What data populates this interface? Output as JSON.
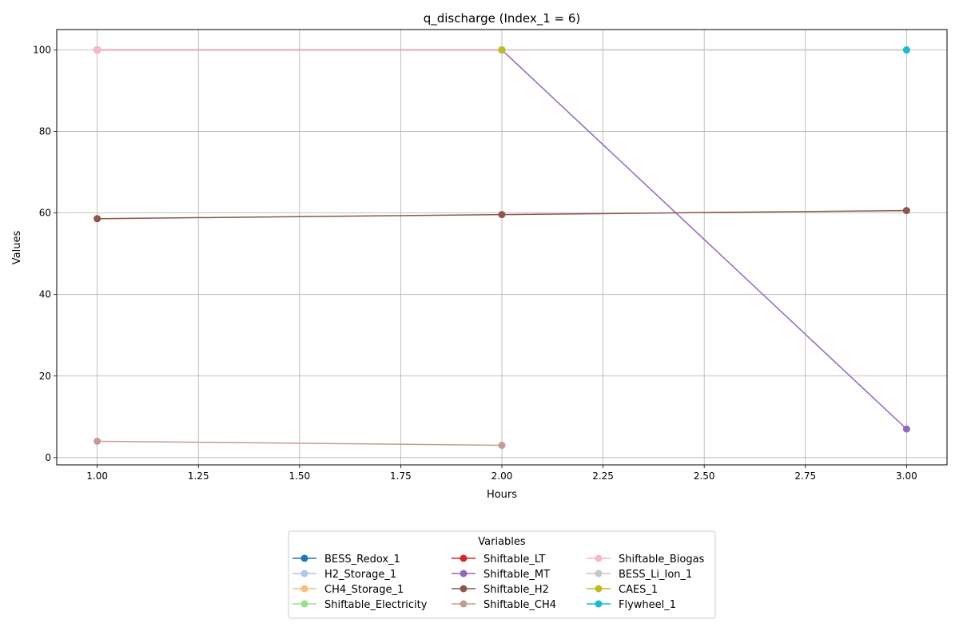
{
  "chart_data": {
    "type": "line",
    "title": "q_discharge (Index_1 = 6)",
    "xlabel": "Hours",
    "ylabel": "Values",
    "xlim": [
      0.9,
      3.1
    ],
    "ylim": [
      -1.8,
      105
    ],
    "xticks": [
      1.0,
      1.25,
      1.5,
      1.75,
      2.0,
      2.25,
      2.5,
      2.75,
      3.0
    ],
    "xtick_labels": [
      "1.00",
      "1.25",
      "1.50",
      "1.75",
      "2.00",
      "2.25",
      "2.50",
      "2.75",
      "3.00"
    ],
    "yticks": [
      0,
      20,
      40,
      60,
      80,
      100
    ],
    "ytick_labels": [
      "0",
      "20",
      "40",
      "60",
      "80",
      "100"
    ],
    "grid": true,
    "legend": {
      "title": "Variables",
      "placement": "bottom-center",
      "columns": 3
    },
    "series": [
      {
        "name": "BESS_Redox_1",
        "color": "#1f77b4",
        "x": [
          1,
          2
        ],
        "y": [
          100,
          100
        ]
      },
      {
        "name": "H2_Storage_1",
        "color": "#aec7e8",
        "x": [
          1,
          2
        ],
        "y": [
          100,
          100
        ]
      },
      {
        "name": "CH4_Storage_1",
        "color": "#ffbb78",
        "x": [
          1,
          2
        ],
        "y": [
          100,
          100
        ]
      },
      {
        "name": "Shiftable_Electricity",
        "color": "#98df8a",
        "x": [
          1,
          2
        ],
        "y": [
          100,
          100
        ]
      },
      {
        "name": "Shiftable_LT",
        "color": "#d62728",
        "x": [
          1,
          2
        ],
        "y": [
          100,
          100
        ]
      },
      {
        "name": "Shiftable_MT",
        "color": "#9467bd",
        "x": [
          1,
          2,
          3
        ],
        "y": [
          100,
          100,
          7
        ]
      },
      {
        "name": "Shiftable_H2",
        "color": "#8c564b",
        "x": [
          1,
          2,
          3
        ],
        "y": [
          58.6,
          59.6,
          60.6
        ]
      },
      {
        "name": "Shiftable_CH4",
        "color": "#c49c94",
        "x": [
          1,
          2
        ],
        "y": [
          4,
          3
        ]
      },
      {
        "name": "Shiftable_Biogas",
        "color": "#f7b6d2",
        "x": [
          1,
          2,
          3
        ],
        "y": [
          100,
          100,
          100
        ]
      },
      {
        "name": "BESS_Li_Ion_1",
        "color": "#c7c7c7",
        "x": [
          2,
          3
        ],
        "y": [
          100,
          100
        ]
      },
      {
        "name": "CAES_1",
        "color": "#bcbd22",
        "x": [
          2
        ],
        "y": [
          100
        ]
      },
      {
        "name": "Flywheel_1",
        "color": "#17becf",
        "x": [
          3
        ],
        "y": [
          100
        ]
      }
    ]
  }
}
